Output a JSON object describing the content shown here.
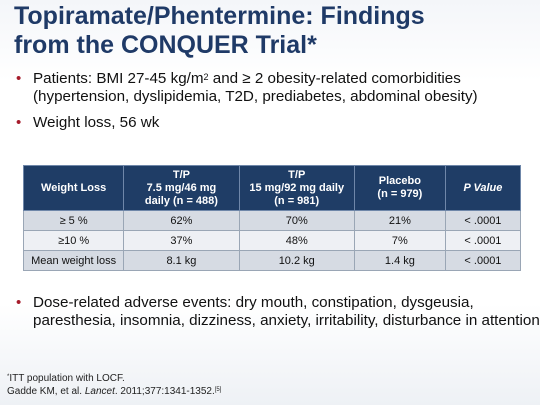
{
  "title": {
    "line1": "Topiramate/Phentermine: Findings",
    "line2": "from the CONQUER Trial*"
  },
  "bullets": {
    "marker": "•",
    "b1_pre": "Patients: BMI 27-45 kg/m",
    "b1_sup": "2",
    "b1_post": " and ≥ 2 obesity-related comorbidities (hypertension, dyslipidemia, T2D, prediabetes, abdominal obesity)",
    "b2": "Weight loss, 56 wk",
    "b3": "Dose-related adverse events: dry mouth, constipation, dysgeusia, paresthesia, insomnia, dizziness, anxiety, irritability, disturbance in attention"
  },
  "table": {
    "headers": [
      [
        "Weight Loss"
      ],
      [
        "T/P",
        "7.5 mg/46 mg",
        "daily (n = 488)"
      ],
      [
        "T/P",
        "15 mg/92 mg daily",
        "(n = 981)"
      ],
      [
        "Placebo",
        "(n = 979)"
      ],
      [
        "P Value"
      ]
    ],
    "rows": [
      [
        "≥ 5 %",
        "62%",
        "70%",
        "21%",
        "< .0001"
      ],
      [
        "≥10 %",
        "37%",
        "48%",
        "7%",
        "< .0001"
      ],
      [
        "Mean weight loss",
        "8.1 kg",
        "10.2 kg",
        "1.4 kg",
        "< .0001"
      ]
    ]
  },
  "footnote": {
    "line1_mark": "*",
    "line1": "ITT population with LOCF.",
    "line2_pre": "Gadde KM, et al. ",
    "line2_journal": "Lancet",
    "line2_post": ". 2011;377:1341-1352.",
    "line2_ref": "[5]"
  }
}
